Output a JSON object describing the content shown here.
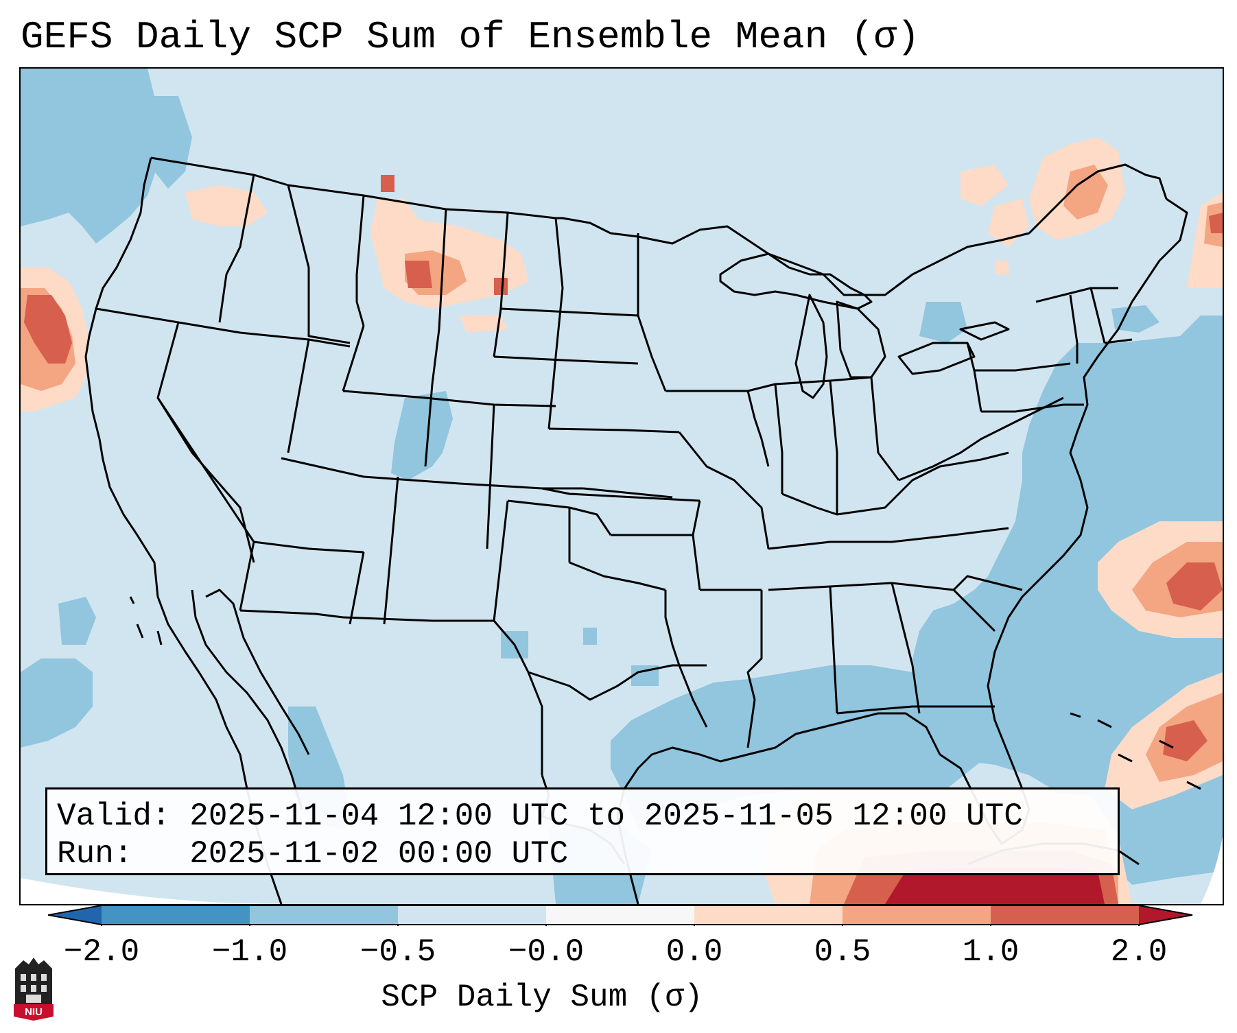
{
  "title": "GEFS Daily SCP Sum of Ensemble Mean (σ)",
  "info": {
    "valid_label": "Valid:",
    "valid_value": "2025-11-04 12:00 UTC to 2025-11-05 12:00 UTC",
    "run_label": "Run:",
    "run_value": "2025-11-02 00:00 UTC"
  },
  "colorbar": {
    "label": "SCP Daily Sum (σ)",
    "ticks": [
      "−2.0",
      "−1.0",
      "−0.5",
      "−0.0",
      "0.0",
      "0.5",
      "1.0",
      "2.0"
    ],
    "bins": [
      {
        "from": -2.0,
        "to": -1.0,
        "color": "#4393c3"
      },
      {
        "from": -1.0,
        "to": -0.5,
        "color": "#92c5de"
      },
      {
        "from": -0.5,
        "to": 0.0,
        "color": "#d1e5f0"
      },
      {
        "from": 0.0,
        "to": 0.0,
        "color": "#f7f7f7"
      },
      {
        "from": 0.0,
        "to": 0.5,
        "color": "#fddbc7"
      },
      {
        "from": 0.5,
        "to": 1.0,
        "color": "#f4a582"
      },
      {
        "from": 1.0,
        "to": 2.0,
        "color": "#d6604d"
      }
    ],
    "under_color": "#2166ac",
    "over_color": "#b2182b"
  },
  "colors": {
    "ocean_low": "#92c5de",
    "land_base": "#d1e5f0",
    "high_1": "#fddbc7",
    "high_2": "#f4a582",
    "high_3": "#d6604d",
    "high_4": "#b2182b",
    "lines": "#000000"
  },
  "logo": {
    "text": "NIU"
  }
}
